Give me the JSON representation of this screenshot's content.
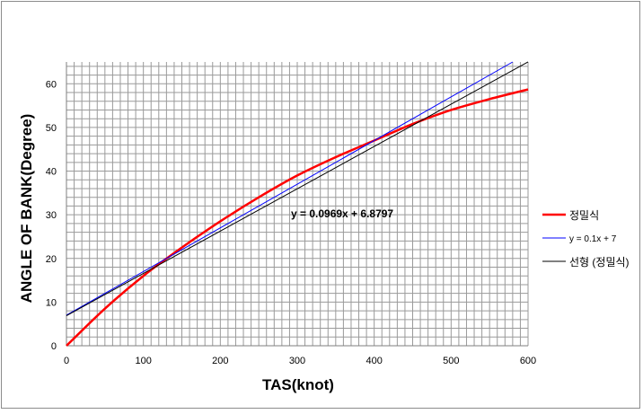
{
  "chart_data": {
    "type": "line",
    "xlabel": "TAS(knot)",
    "ylabel": "ANGLE OF BANK(Degree)",
    "xlim": [
      0,
      600
    ],
    "ylim": [
      0,
      65
    ],
    "x_ticks": [
      "0",
      "100",
      "200",
      "300",
      "400",
      "500",
      "600"
    ],
    "y_ticks": [
      "0",
      "10",
      "20",
      "30",
      "40",
      "50",
      "60"
    ],
    "grid": {
      "x_minor_step": 10,
      "y_minor_step": 2,
      "major_x_step": 100,
      "major_y_step": 10
    },
    "annotation": "y = 0.0969x + 6.8797",
    "legend_position": "right",
    "series": [
      {
        "name": "정밀식",
        "color": "#ff0000",
        "x": [
          0,
          50,
          100,
          150,
          200,
          250,
          300,
          350,
          400,
          450,
          500,
          550,
          600
        ],
        "y": [
          0,
          8.5,
          16,
          22.5,
          28.5,
          34,
          39,
          43.2,
          47,
          50.8,
          54,
          56.5,
          58.7
        ]
      },
      {
        "name": "y = 0.1x + 7",
        "color": "#0000ff",
        "x": [
          0,
          580
        ],
        "y": [
          7,
          65
        ]
      },
      {
        "name": "선형 (정밀식)",
        "color": "#000000",
        "x": [
          0,
          600
        ],
        "y": [
          6.8797,
          65.0197
        ]
      }
    ]
  }
}
